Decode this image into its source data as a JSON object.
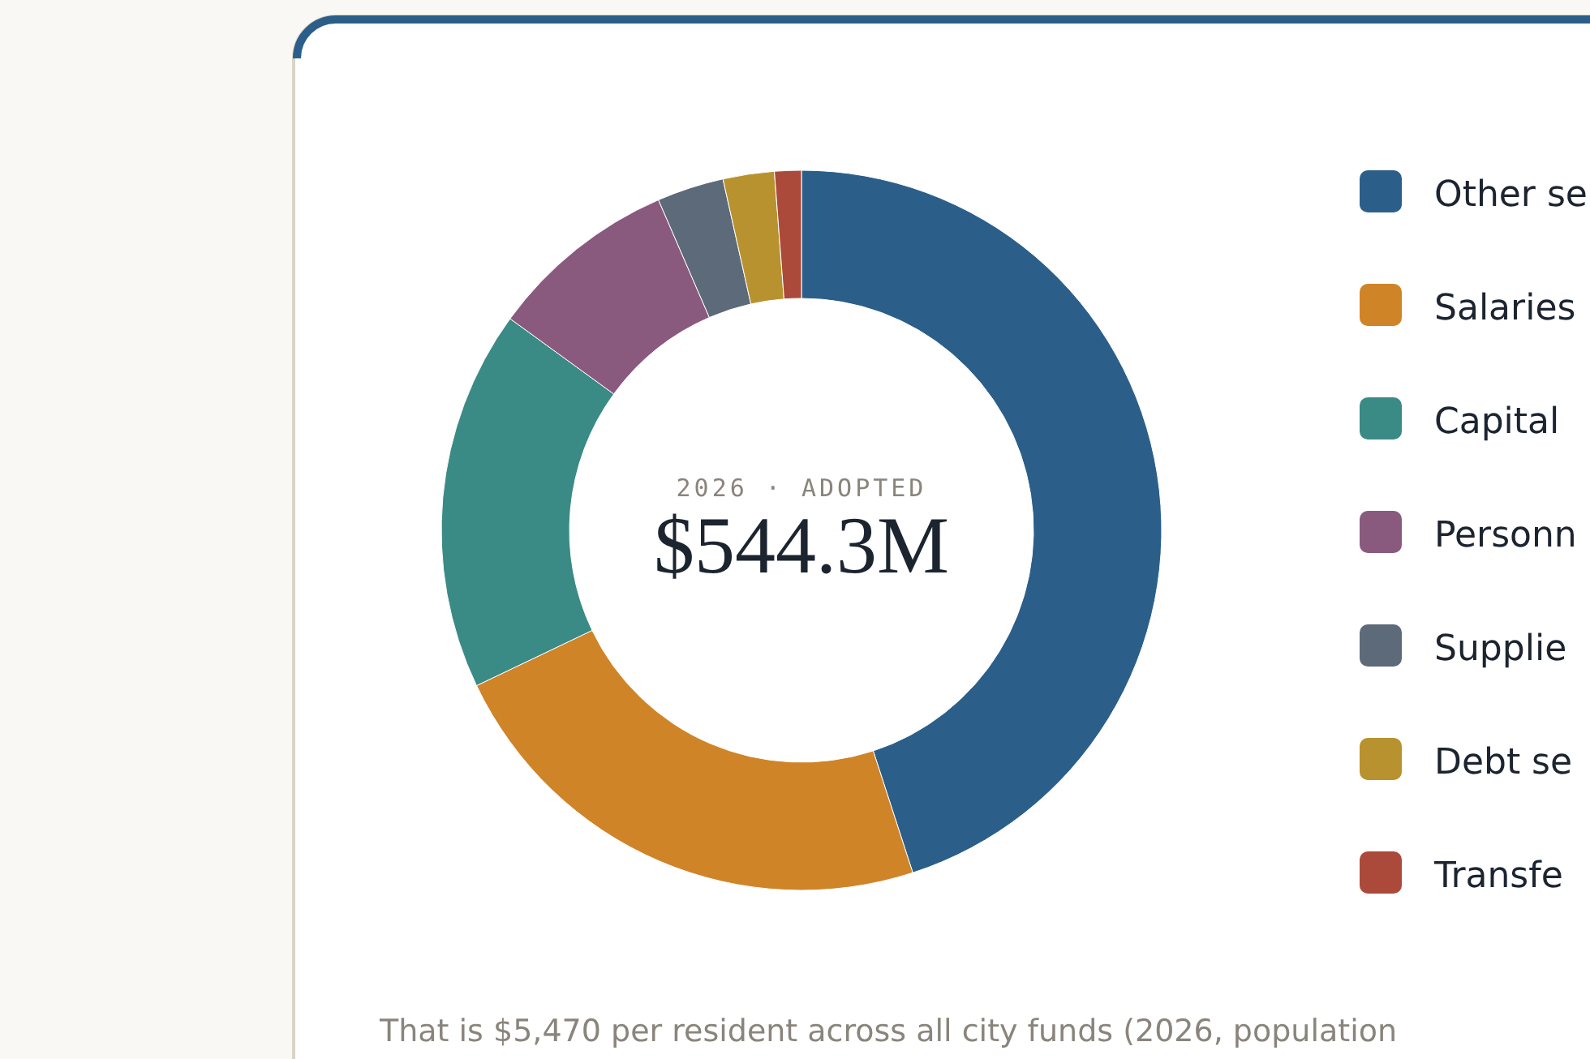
{
  "chart_data": {
    "type": "donut",
    "title": "$544.3M",
    "subtitle": "2026 · ADOPTED",
    "categories": [
      "Other se",
      "Salaries",
      "Capital",
      "Personn",
      "Supplie",
      "Debt se",
      "Transfe"
    ],
    "values": [
      45.0,
      22.9,
      17.1,
      8.5,
      3.0,
      2.3,
      1.2
    ],
    "colors": [
      "#2b5f8a",
      "#d08428",
      "#3a8a85",
      "#8a5a7e",
      "#5d6a7a",
      "#b8922e",
      "#ab4a3a"
    ],
    "legend": "right",
    "annotations": [
      "That is $5,470 per resident across all city funds (2026, population"
    ]
  }
}
